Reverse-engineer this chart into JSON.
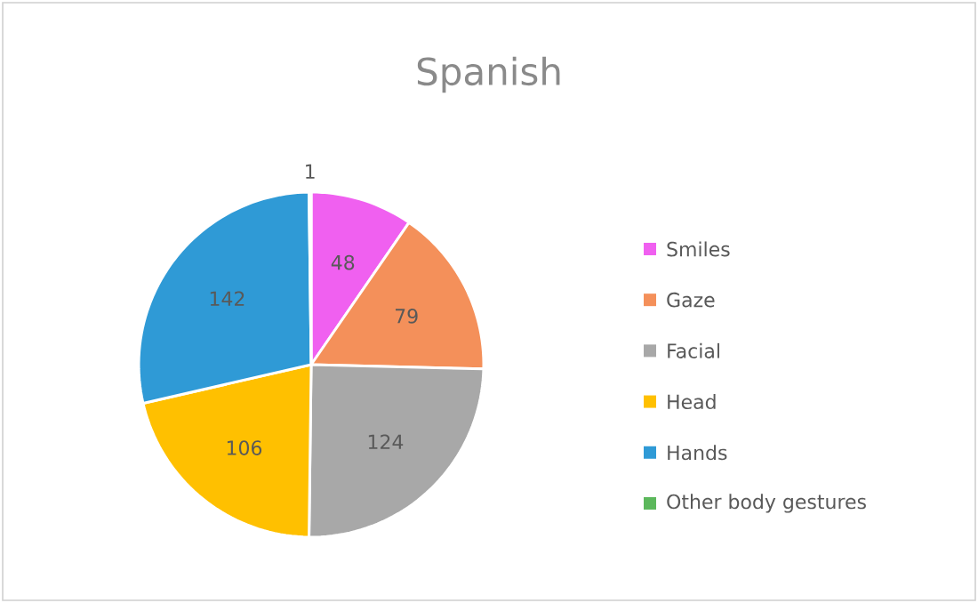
{
  "chart_data": {
    "type": "pie",
    "title": "Spanish",
    "categories": [
      "Smiles",
      "Gaze",
      "Facial",
      "Head",
      "Hands",
      "Other body gestures"
    ],
    "values": [
      48,
      79,
      124,
      106,
      142,
      1
    ],
    "colors": [
      "#f060f0",
      "#f4905a",
      "#a8a8a8",
      "#ffc000",
      "#2f9ad6",
      "#5cb85c"
    ],
    "data_labels": true,
    "legend": "right"
  }
}
